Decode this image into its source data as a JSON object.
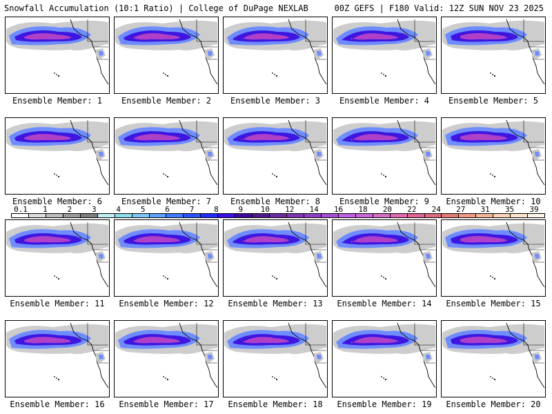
{
  "header": {
    "left": "Snowfall Accumulation (10:1 Ratio) | College of DuPage NEXLAB",
    "right": "00Z GEFS | F180 Valid: 12Z SUN NOV 23 2025"
  },
  "caption_prefix": "Ensemble Member:",
  "members": [
    {
      "number": "1"
    },
    {
      "number": "2"
    },
    {
      "number": "3"
    },
    {
      "number": "4"
    },
    {
      "number": "5"
    },
    {
      "number": "6"
    },
    {
      "number": "7"
    },
    {
      "number": "8"
    },
    {
      "number": "9"
    },
    {
      "number": "10"
    },
    {
      "number": "11"
    },
    {
      "number": "12"
    },
    {
      "number": "13"
    },
    {
      "number": "14"
    },
    {
      "number": "15"
    },
    {
      "number": "16"
    },
    {
      "number": "17"
    },
    {
      "number": "18"
    },
    {
      "number": "19"
    },
    {
      "number": "20"
    }
  ],
  "legend": {
    "labels": [
      "0.1",
      "1",
      "2",
      "3",
      "4",
      "5",
      "6",
      "7",
      "8",
      "9",
      "10",
      "12",
      "14",
      "16",
      "18",
      "20",
      "22",
      "24",
      "27",
      "31",
      "35",
      "39"
    ],
    "colors": [
      "#ffffff",
      "#dcdcdc",
      "#bdbdbd",
      "#9c9c9c",
      "#7e7e7e",
      "#bfeef5",
      "#8fe0ef",
      "#7ec8ff",
      "#5aa3ff",
      "#3f7cff",
      "#2a52ff",
      "#1f2dff",
      "#3a10e8",
      "#3d0a9c",
      "#4f1a8e",
      "#6b2aa0",
      "#8035b4",
      "#9040c8",
      "#a84fd8",
      "#c060e6",
      "#cc66d9",
      "#d66ec4",
      "#e06aaf",
      "#e36394",
      "#e06a7d",
      "#e47a75",
      "#ee9a85",
      "#f5b79a",
      "#fad3b8",
      "#fde5d0",
      "#fff5e8"
    ]
  },
  "colors": {
    "land_fill": "#ffffff",
    "ocean_fill": "#ffffff",
    "snow_light": "#c8c8c8",
    "snow_mid": "#6f8cff",
    "snow_heavy": "#3d16e0",
    "snow_core": "#b040c8"
  }
}
